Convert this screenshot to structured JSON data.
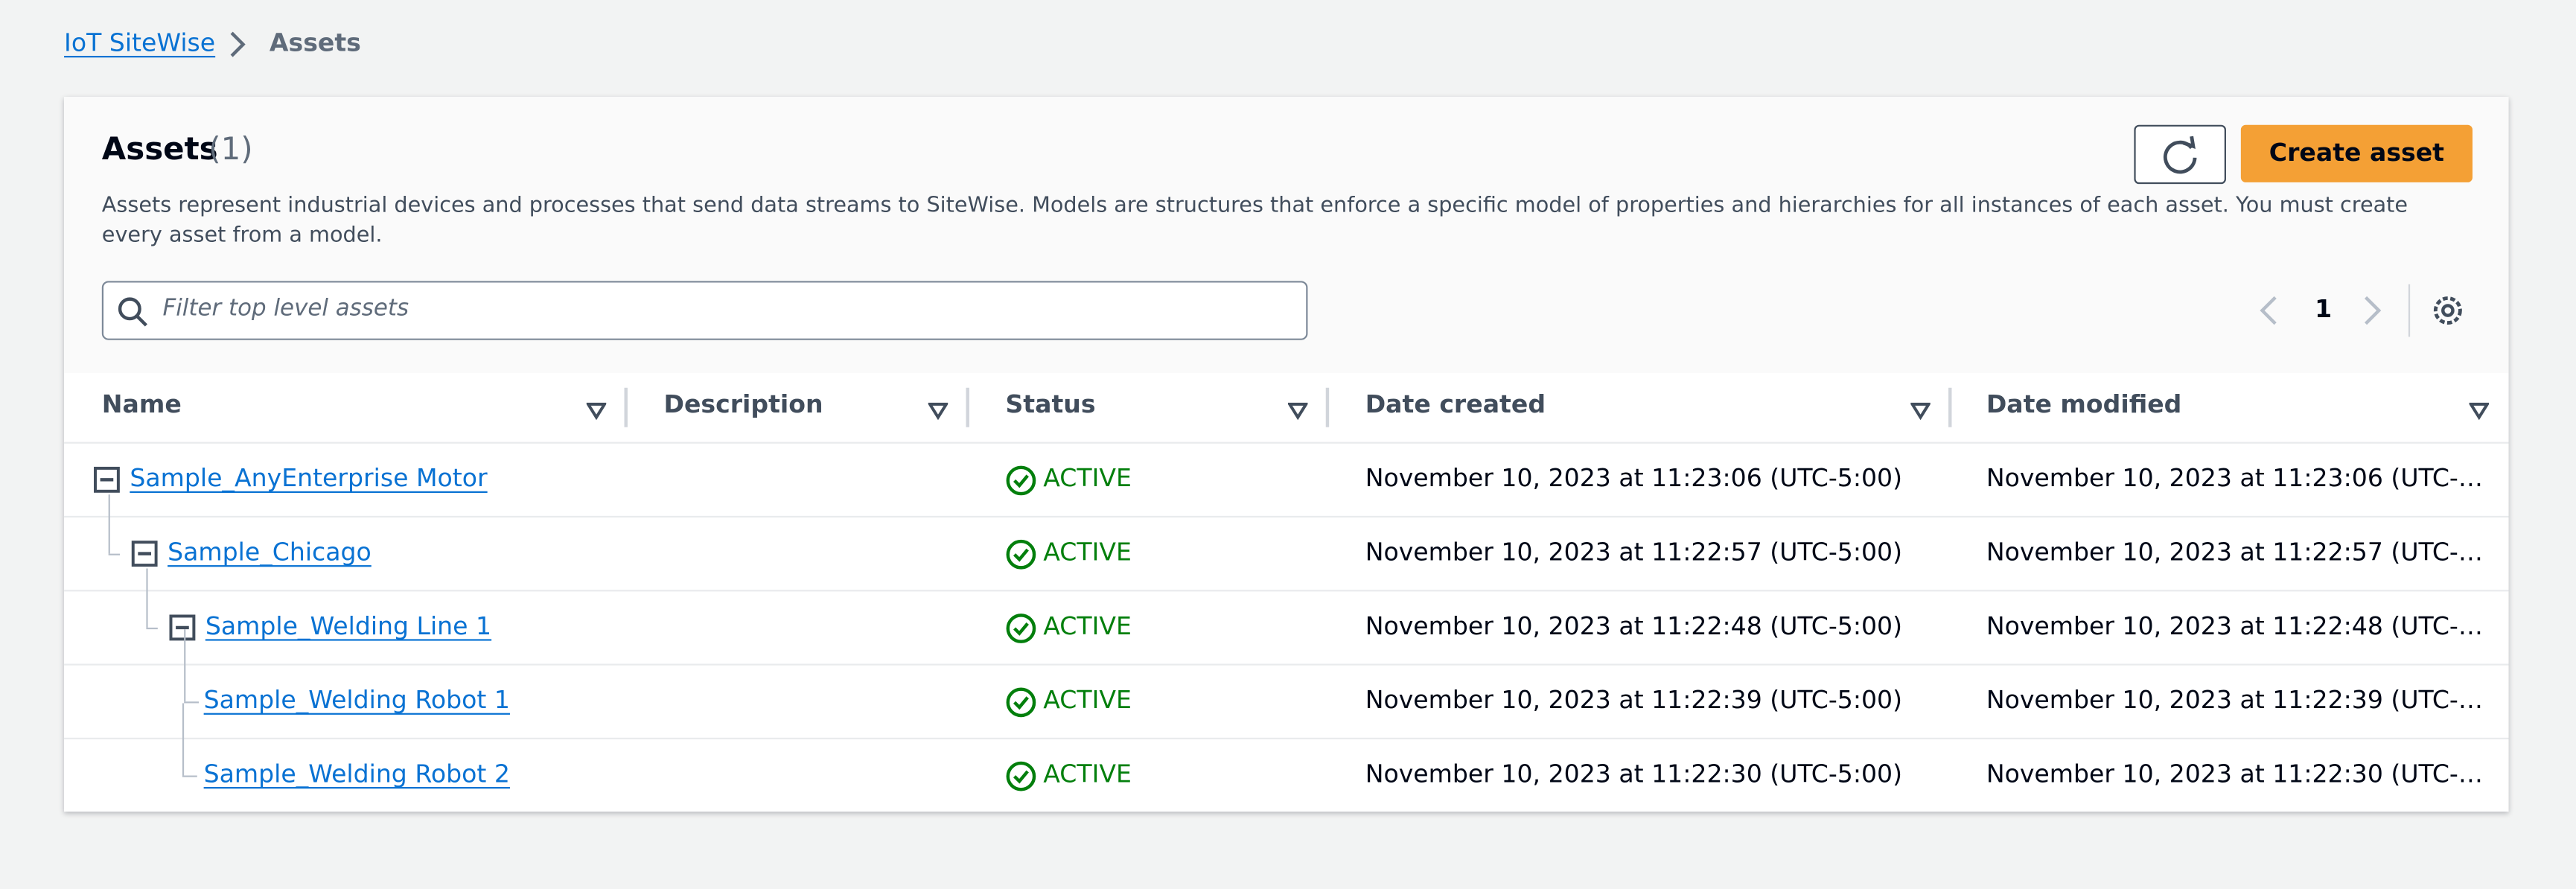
{
  "breadcrumb": [
    "IoT SiteWise",
    "Assets"
  ],
  "header": {
    "title": "Assets",
    "count": "(1)",
    "description": "Assets represent industrial devices and processes that send data streams to SiteWise. Models are structures that enforce a specific model of properties and hierarchies for all instances of each asset. You must create every asset from a model.",
    "create_button": "Create asset"
  },
  "filter": {
    "placeholder": "Filter top level assets"
  },
  "pagination": {
    "page": "1"
  },
  "table": {
    "columns": [
      "Name",
      "Description",
      "Status",
      "Date created",
      "Date modified"
    ],
    "rows": [
      {
        "name": "Sample_AnyEnterprise Motor",
        "status": "ACTIVE",
        "created": "November 10, 2023 at 11:23:06 (UTC-5:00)",
        "modified": "November 10, 2023 at 11:23:06 (UTC-…"
      },
      {
        "name": "Sample_Chicago",
        "status": "ACTIVE",
        "created": "November 10, 2023 at 11:22:57 (UTC-5:00)",
        "modified": "November 10, 2023 at 11:22:57 (UTC-…"
      },
      {
        "name": "Sample_Welding Line 1",
        "status": "ACTIVE",
        "created": "November 10, 2023 at 11:22:48 (UTC-5:00)",
        "modified": "November 10, 2023 at 11:22:48 (UTC-…"
      },
      {
        "name": "Sample_Welding Robot 1",
        "status": "ACTIVE",
        "created": "November 10, 2023 at 11:22:39 (UTC-5:00)",
        "modified": "November 10, 2023 at 11:22:39 (UTC-…"
      },
      {
        "name": "Sample_Welding Robot 2",
        "status": "ACTIVE",
        "created": "November 10, 2023 at 11:22:30 (UTC-5:00)",
        "modified": "November 10, 2023 at 11:22:30 (UTC-…"
      }
    ]
  }
}
